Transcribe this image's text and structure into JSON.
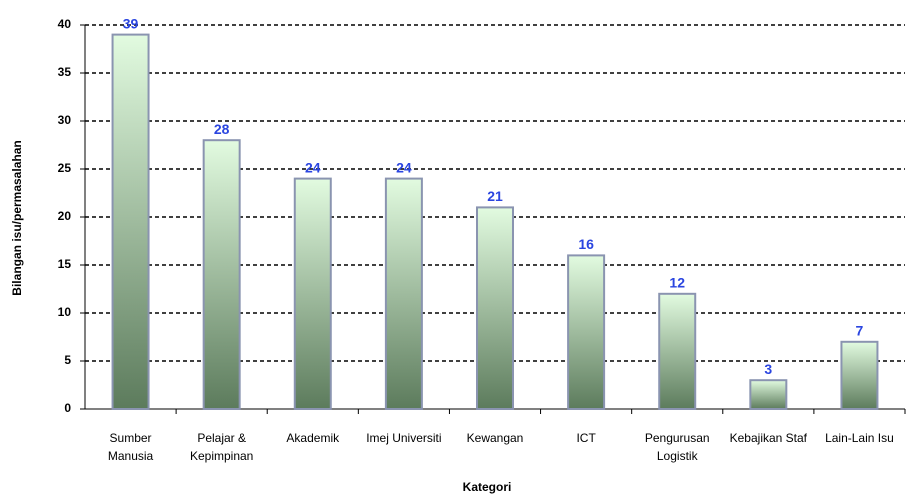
{
  "chart_data": {
    "type": "bar",
    "x_label": "Kategori",
    "y_label": "Bilangan isu/permasalahan",
    "categories": [
      "Sumber\nManusia",
      "Pelajar &\nKepimpinan",
      "Akademik",
      "Imej Universiti",
      "Kewangan",
      "ICT",
      "Pengurusan\nLogistik",
      "Kebajikan Staf",
      "Lain-Lain Isu"
    ],
    "values": [
      39,
      28,
      24,
      24,
      21,
      16,
      12,
      3,
      7
    ],
    "color": "#6f8f6f",
    "ylim": [
      0,
      40
    ],
    "yticks": [
      0,
      5,
      10,
      15,
      20,
      25,
      30,
      35,
      40
    ],
    "grid": true
  }
}
